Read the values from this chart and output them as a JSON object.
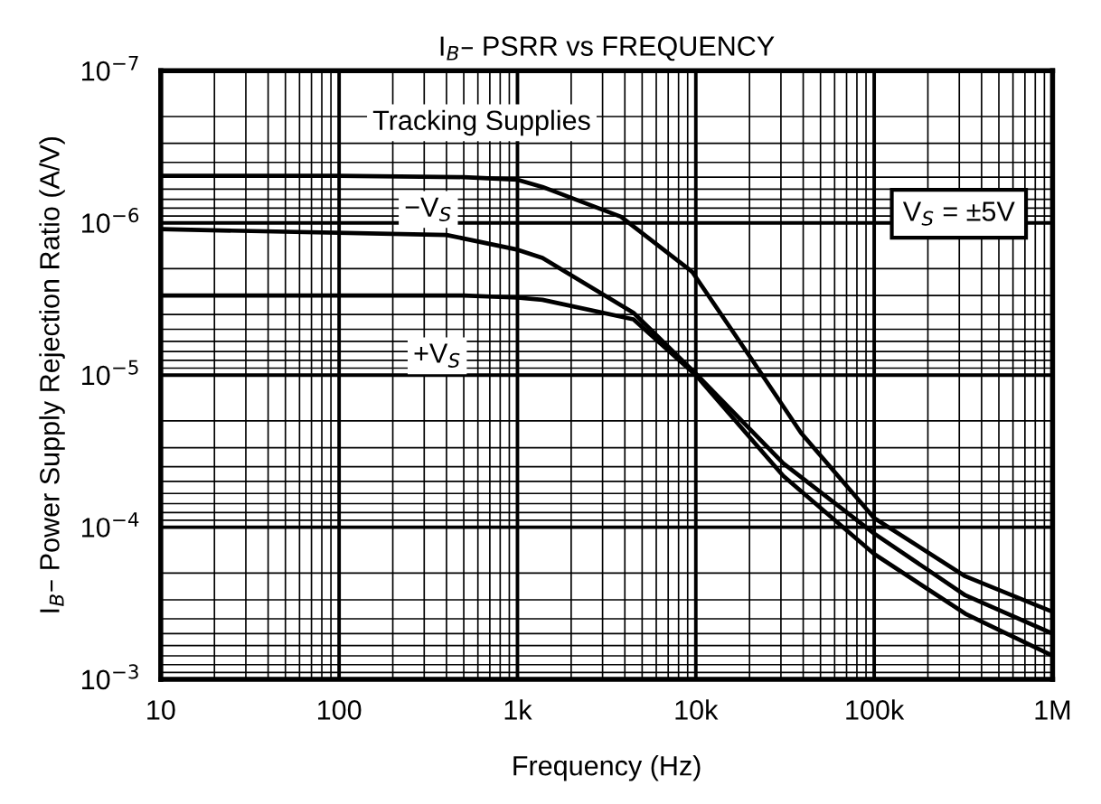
{
  "chart_data": {
    "type": "line",
    "title": "I$_{B}$– PSRR vs FREQUENCY",
    "xlabel": "Frequency (Hz)",
    "ylabel": "I$_{B}$– Power Supply Rejection Ratio (A/V)",
    "annotations": [
      "V$_{S}$ = ±5V"
    ],
    "log": "xy",
    "xlim": [
      10,
      1000000
    ],
    "xticks": [
      10,
      100,
      {
        "value": 1000,
        "label": "1k"
      },
      {
        "value": 10000,
        "label": "10k"
      },
      {
        "value": 100000,
        "label": "100k"
      },
      {
        "value": 1000000,
        "label": "1M"
      }
    ],
    "ylim": [
      0.001,
      1e-07
    ],
    "yticks": [
      {
        "value": 1e-07,
        "label": "10$^{−7}$"
      },
      {
        "value": 1e-06,
        "label": "10$^{−6}$"
      },
      {
        "value": 1e-05,
        "label": "10$^{−5}$"
      },
      {
        "value": 0.0001,
        "label": "10$^{−4}$"
      },
      {
        "value": 0.001,
        "label": "10$^{−3}$"
      }
    ],
    "grid": true,
    "legend": false,
    "marker": "none",
    "line_style": "solid",
    "series": [
      {
        "name": "Tracking Supplies",
        "color": "#000000",
        "x": [
          10,
          100,
          500,
          1000,
          1380,
          3800,
          9550,
          20900,
          38900,
          100000,
          324000,
          1000000
        ],
        "values": [
          4.9e-07,
          4.9e-07,
          5e-07,
          5.2e-07,
          5.8e-07,
          9.1e-07,
          2.1e-06,
          8.1e-06,
          2.4e-05,
          8.7e-05,
          0.00021,
          0.00036
        ]
      },
      {
        "name": "−V$_{S}$",
        "color": "#000000",
        "x": [
          10,
          400,
          1000,
          1380,
          4470,
          10000,
          30900,
          100000,
          324000,
          1000000
        ],
        "values": [
          1.1e-06,
          1.2e-06,
          1.5e-06,
          1.7e-06,
          3.9e-06,
          9.8e-06,
          3.8e-05,
          0.00011,
          0.00028,
          0.0005
        ]
      },
      {
        "name": "+V$_{S}$",
        "color": "#000000",
        "x": [
          10,
          500,
          1000,
          1380,
          4470,
          10000,
          30900,
          100000,
          324000,
          1000000
        ],
        "values": [
          3e-06,
          3e-06,
          3.1e-06,
          3.2e-06,
          4.3e-06,
          1e-05,
          4.6e-05,
          0.00015,
          0.00037,
          0.0007
        ]
      }
    ]
  }
}
